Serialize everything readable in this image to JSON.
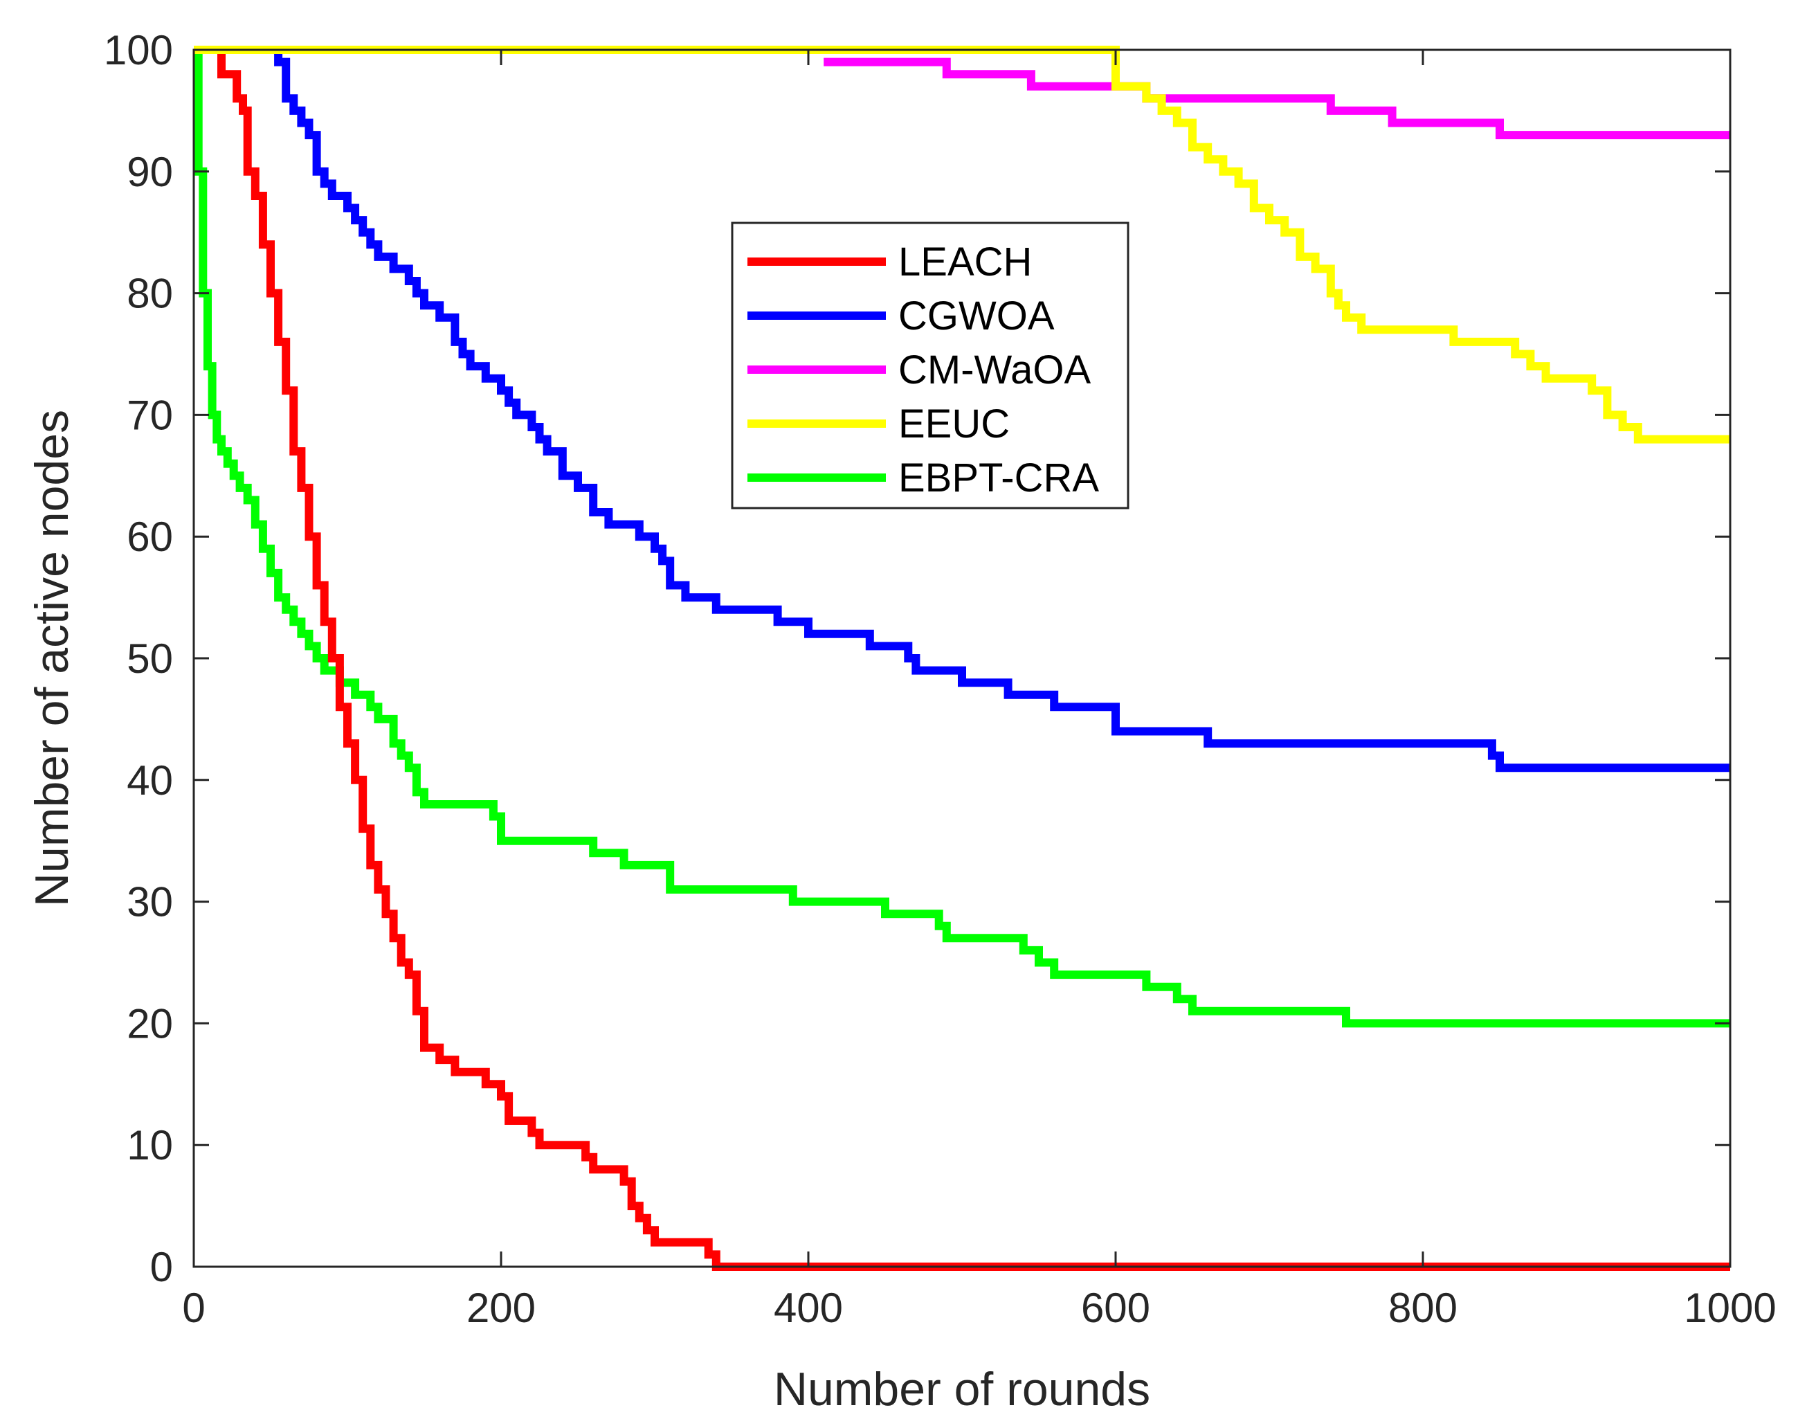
{
  "chart_data": {
    "type": "line",
    "title": "",
    "xlabel": "Number of rounds",
    "ylabel": "Number of active nodes",
    "xlim": [
      0,
      1000
    ],
    "ylim": [
      0,
      100
    ],
    "xticks": [
      0,
      200,
      400,
      600,
      800,
      1000
    ],
    "yticks": [
      0,
      10,
      20,
      30,
      40,
      50,
      60,
      70,
      80,
      90,
      100
    ],
    "grid": false,
    "legend_position": "upper-middle",
    "series": [
      {
        "name": "LEACH",
        "color": "#ff0000",
        "x": [
          0,
          12,
          18,
          25,
          28,
          32,
          35,
          40,
          45,
          50,
          55,
          60,
          65,
          70,
          75,
          80,
          85,
          90,
          95,
          100,
          105,
          110,
          115,
          120,
          125,
          130,
          135,
          140,
          145,
          150,
          160,
          170,
          180,
          190,
          200,
          205,
          210,
          220,
          225,
          230,
          240,
          250,
          255,
          260,
          270,
          280,
          285,
          290,
          295,
          300,
          310,
          320,
          330,
          335,
          340,
          400,
          500,
          600,
          700,
          800,
          900,
          1000
        ],
        "y": [
          100,
          100,
          98,
          98,
          96,
          95,
          90,
          88,
          84,
          80,
          76,
          72,
          67,
          64,
          60,
          56,
          53,
          50,
          46,
          43,
          40,
          36,
          33,
          31,
          29,
          27,
          25,
          24,
          21,
          18,
          17,
          16,
          16,
          15,
          14,
          12,
          12,
          11,
          10,
          10,
          10,
          10,
          9,
          8,
          8,
          7,
          5,
          4,
          3,
          2,
          2,
          2,
          2,
          1,
          0,
          0,
          0,
          0,
          0,
          0,
          0,
          0
        ]
      },
      {
        "name": "CGWOA",
        "color": "#0000ff",
        "x": [
          50,
          55,
          60,
          65,
          70,
          75,
          80,
          85,
          90,
          100,
          105,
          110,
          115,
          120,
          130,
          140,
          145,
          150,
          160,
          170,
          175,
          180,
          190,
          200,
          205,
          210,
          220,
          225,
          230,
          240,
          250,
          260,
          270,
          290,
          300,
          305,
          310,
          320,
          340,
          350,
          380,
          400,
          430,
          440,
          460,
          465,
          470,
          490,
          500,
          520,
          530,
          540,
          560,
          595,
          600,
          620,
          650,
          660,
          700,
          740,
          800,
          840,
          845,
          850,
          900,
          950,
          1000
        ],
        "y": [
          100,
          99,
          96,
          95,
          94,
          93,
          90,
          89,
          88,
          87,
          86,
          85,
          84,
          83,
          82,
          81,
          80,
          79,
          78,
          76,
          75,
          74,
          73,
          72,
          71,
          70,
          69,
          68,
          67,
          65,
          64,
          62,
          61,
          60,
          59,
          58,
          56,
          55,
          54,
          54,
          53,
          52,
          52,
          51,
          51,
          50,
          49,
          49,
          48,
          48,
          47,
          47,
          46,
          46,
          44,
          44,
          44,
          43,
          43,
          43,
          43,
          43,
          42,
          41,
          41,
          41,
          41
        ]
      },
      {
        "name": "CM-WaOA",
        "color": "#ff00ff",
        "x": [
          410,
          450,
          490,
          520,
          545,
          580,
          620,
          650,
          700,
          740,
          780,
          820,
          850,
          900,
          1000
        ],
        "y": [
          99,
          99,
          98,
          98,
          97,
          97,
          96,
          96,
          96,
          95,
          94,
          94,
          93,
          93,
          93
        ]
      },
      {
        "name": "EEUC",
        "color": "#ffff00",
        "x": [
          0,
          590,
          600,
          620,
          630,
          640,
          650,
          660,
          670,
          680,
          690,
          700,
          710,
          720,
          730,
          740,
          745,
          750,
          760,
          780,
          820,
          860,
          870,
          880,
          890,
          900,
          910,
          920,
          930,
          940,
          1000
        ],
        "y": [
          100,
          100,
          97,
          96,
          95,
          94,
          92,
          91,
          90,
          89,
          87,
          86,
          85,
          83,
          82,
          80,
          79,
          78,
          77,
          77,
          76,
          75,
          74,
          73,
          73,
          73,
          72,
          70,
          69,
          68,
          68
        ]
      },
      {
        "name": "EBPT-CRA",
        "color": "#00ff00",
        "x": [
          0,
          3,
          6,
          9,
          12,
          15,
          18,
          22,
          26,
          30,
          35,
          40,
          45,
          50,
          55,
          60,
          65,
          70,
          75,
          80,
          85,
          90,
          95,
          100,
          105,
          110,
          115,
          120,
          125,
          130,
          135,
          140,
          145,
          150,
          160,
          170,
          180,
          190,
          195,
          200,
          210,
          220,
          230,
          240,
          250,
          260,
          270,
          280,
          300,
          310,
          320,
          340,
          360,
          380,
          390,
          400,
          440,
          450,
          480,
          485,
          490,
          500,
          530,
          540,
          550,
          560,
          600,
          620,
          640,
          650,
          700,
          740,
          750,
          800,
          900,
          1000
        ],
        "y": [
          100,
          90,
          80,
          74,
          70,
          68,
          67,
          66,
          65,
          64,
          63,
          61,
          59,
          57,
          55,
          54,
          53,
          52,
          51,
          50,
          49,
          49,
          48,
          48,
          47,
          47,
          46,
          45,
          45,
          43,
          42,
          41,
          39,
          38,
          38,
          38,
          38,
          38,
          37,
          35,
          35,
          35,
          35,
          35,
          35,
          34,
          34,
          33,
          33,
          31,
          31,
          31,
          31,
          31,
          30,
          30,
          30,
          29,
          29,
          28,
          27,
          27,
          27,
          26,
          25,
          24,
          24,
          23,
          22,
          21,
          21,
          21,
          20,
          20,
          20,
          20
        ]
      }
    ]
  }
}
